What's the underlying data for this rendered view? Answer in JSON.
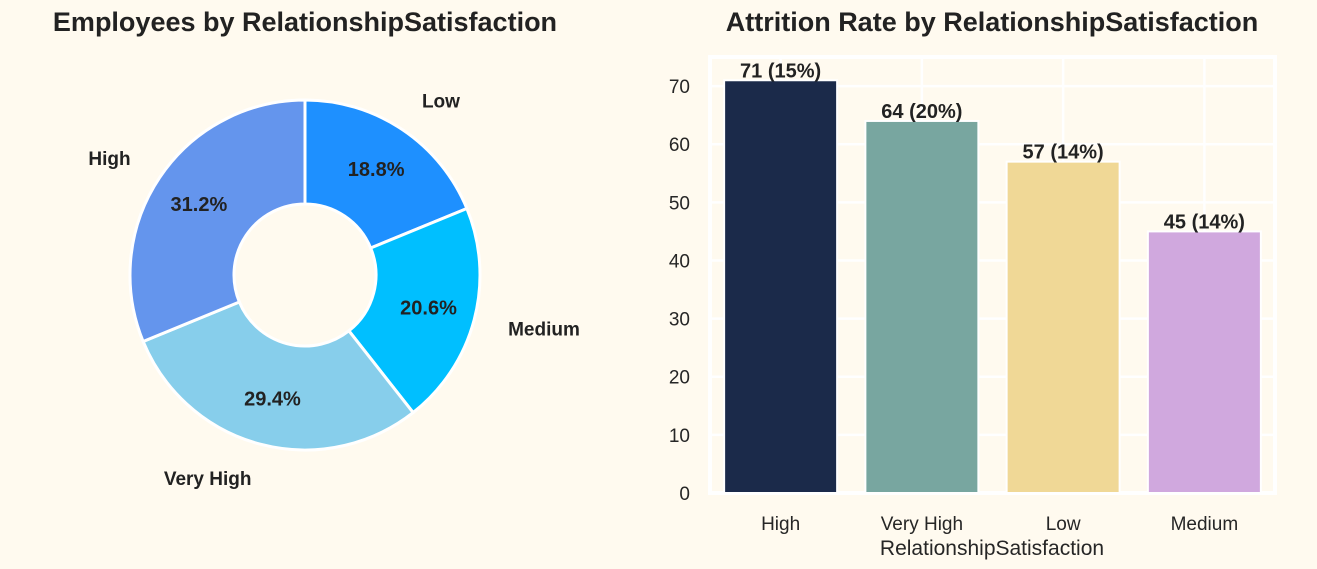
{
  "chart_data": [
    {
      "type": "pie",
      "title": "Employees by RelationshipSatisfaction",
      "donut": true,
      "start_angle_deg": 90,
      "direction": "clockwise",
      "slices": [
        {
          "label": "Low",
          "value": 18.8,
          "pct_label": "18.8%",
          "color": "#1e90ff"
        },
        {
          "label": "Medium",
          "value": 20.6,
          "pct_label": "20.6%",
          "color": "#00bfff"
        },
        {
          "label": "Very High",
          "value": 29.4,
          "pct_label": "29.4%",
          "color": "#87ceeb"
        },
        {
          "label": "High",
          "value": 31.2,
          "pct_label": "31.2%",
          "color": "#6495ed"
        }
      ]
    },
    {
      "type": "bar",
      "title": "Attrition Rate by RelationshipSatisfaction",
      "xlabel": "RelationshipSatisfaction",
      "ylabel": "",
      "categories": [
        "High",
        "Very High",
        "Low",
        "Medium"
      ],
      "values": [
        71,
        64,
        57,
        45
      ],
      "value_labels": [
        "71 (15%)",
        "64 (20%)",
        "57 (14%)",
        "45 (14%)"
      ],
      "colors": [
        "#1b2a4a",
        "#78a6a0",
        "#f0d896",
        "#d0a8de"
      ],
      "ylim": [
        0,
        75
      ],
      "yticks": [
        0,
        10,
        20,
        30,
        40,
        50,
        60,
        70
      ],
      "grid": true,
      "background": "#fffaef"
    }
  ]
}
